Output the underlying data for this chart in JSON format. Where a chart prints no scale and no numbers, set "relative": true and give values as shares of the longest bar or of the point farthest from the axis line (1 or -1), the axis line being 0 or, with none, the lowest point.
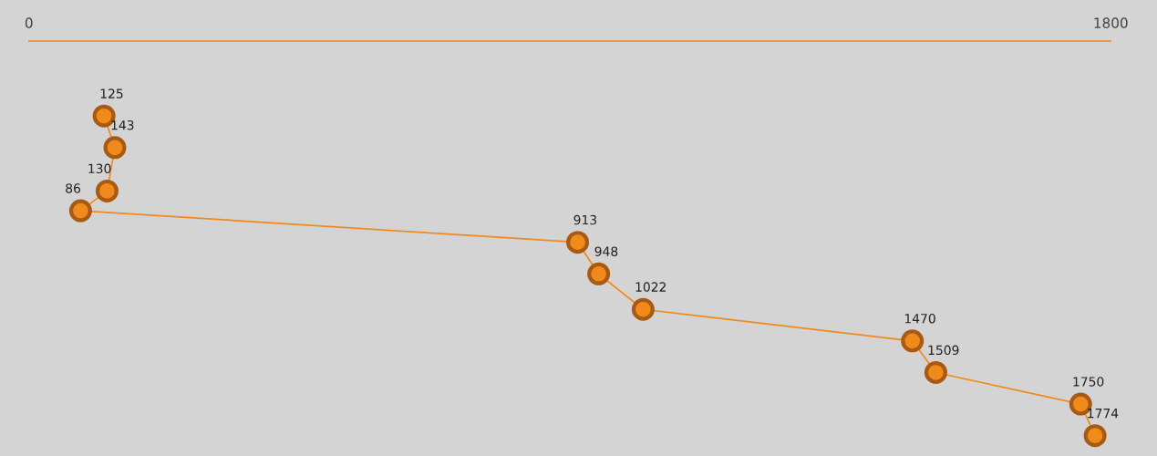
{
  "chart_data": {
    "type": "line",
    "relative": true,
    "series": [
      {
        "color": "#f08a1c",
        "x": [
          125,
          143,
          130,
          86,
          913,
          948,
          1022,
          1470,
          1509,
          1750,
          1774
        ],
        "values": [
          -0.19,
          -0.27,
          -0.38,
          -0.43,
          -0.51,
          -0.59,
          -0.68,
          -0.76,
          -0.84,
          -0.92,
          -1
        ]
      }
    ],
    "annotations": [
      {
        "text": "125",
        "x": 125,
        "y": -0.19
      },
      {
        "text": "143",
        "x": 143,
        "y": -0.27
      },
      {
        "text": "130",
        "x": 130,
        "y": -0.38
      },
      {
        "text": "86",
        "x": 86,
        "y": -0.43
      },
      {
        "text": "913",
        "x": 913,
        "y": -0.51
      },
      {
        "text": "948",
        "x": 948,
        "y": -0.59
      },
      {
        "text": "1022",
        "x": 1022,
        "y": -0.68
      },
      {
        "text": "1470",
        "x": 1470,
        "y": -0.76
      },
      {
        "text": "1509",
        "x": 1509,
        "y": -0.84
      },
      {
        "text": "1750",
        "x": 1750,
        "y": -0.92
      },
      {
        "text": "1774",
        "x": 1774,
        "y": -1
      }
    ],
    "tick_labels": "x",
    "xlim": [
      0,
      1800
    ],
    "xticks": [
      0,
      1800
    ],
    "marker": "circle",
    "line_style": "solid",
    "grid": false
  }
}
